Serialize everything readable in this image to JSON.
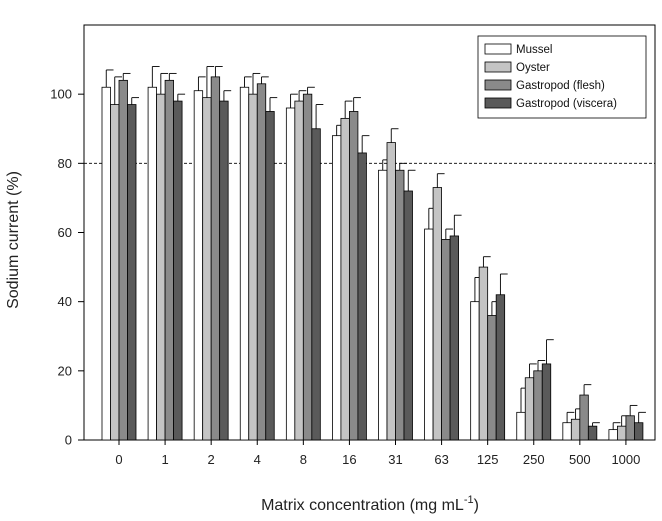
{
  "chart_data": {
    "type": "bar",
    "xlabel": "Matrix concentration (mg mL",
    "xlabel_sup": "-1",
    "xlabel_end": ")",
    "ylabel": "Sodium current (%)",
    "ylim": [
      0,
      120
    ],
    "yticks": [
      0,
      20,
      40,
      60,
      80,
      100
    ],
    "reference_line": 80,
    "legend_position": "top-right",
    "categories": [
      "0",
      "1",
      "2",
      "4",
      "8",
      "16",
      "31",
      "63",
      "125",
      "250",
      "500",
      "1000"
    ],
    "series": [
      {
        "name": "Mussel",
        "color": "#ffffff",
        "values": [
          102,
          102,
          101,
          102,
          96,
          88,
          78,
          61,
          40,
          8,
          5,
          3
        ],
        "errors": [
          5,
          6,
          4,
          3,
          4,
          3,
          3,
          6,
          7,
          7,
          3,
          2
        ]
      },
      {
        "name": "Oyster",
        "color": "#c4c4c4",
        "values": [
          97,
          100,
          99,
          100,
          98,
          93,
          86,
          73,
          50,
          18,
          6,
          4
        ],
        "errors": [
          8,
          6,
          9,
          6,
          3,
          5,
          4,
          4,
          3,
          4,
          3,
          3
        ]
      },
      {
        "name": "Gastropod (flesh)",
        "color": "#8a8a8a",
        "values": [
          104,
          104,
          105,
          103,
          100,
          95,
          78,
          58,
          36,
          20,
          13,
          7
        ],
        "errors": [
          2,
          2,
          3,
          2,
          2,
          4,
          2,
          3,
          4,
          3,
          3,
          3
        ]
      },
      {
        "name": "Gastropod (viscera)",
        "color": "#5a5a5a",
        "values": [
          97,
          98,
          98,
          95,
          90,
          83,
          72,
          59,
          42,
          22,
          4,
          5
        ],
        "errors": [
          2,
          2,
          3,
          4,
          7,
          5,
          6,
          6,
          6,
          7,
          1,
          3
        ]
      }
    ]
  }
}
